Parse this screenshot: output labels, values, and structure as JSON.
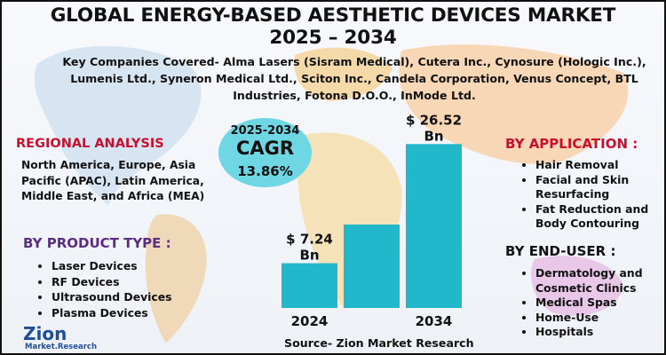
{
  "header": {
    "title_line1": "GLOBAL ENERGY-BASED AESTHETIC DEVICES MARKET",
    "title_line2": "2025 – 2034",
    "companies": "Key Companies Covered- Alma Lasers (Sisram Medical), Cutera Inc., Cynosure (Hologic Inc.), Lumenis Ltd., Syneron Medical Ltd., Sciton Inc., Candela Corporation, Venus Concept, BTL Industries, Fotona D.O.O., InMode Ltd."
  },
  "regional": {
    "heading": "REGIONAL ANALYSIS",
    "text": "North America, Europe, Asia Pacific (APAC), Latin America, Middle East, and Africa (MEA)"
  },
  "product_type": {
    "heading": "BY  PRODUCT TYPE :",
    "items": [
      "Laser Devices",
      "RF Devices",
      "Ultrasound Devices",
      "Plasma Devices"
    ]
  },
  "application": {
    "heading": "BY APPLICATION :",
    "items": [
      "Hair Removal",
      "Facial and Skin Resurfacing",
      "Fat Reduction and Body Contouring"
    ]
  },
  "end_user": {
    "heading": "BY END-USER :",
    "items": [
      "Dermatology and Cosmetic Clinics",
      "Medical Spas",
      "Home-Use",
      "Hospitals"
    ]
  },
  "cagr": {
    "years": "2025-2034",
    "label": "CAGR",
    "value": "13.86%"
  },
  "source": "Source- Zion Market Research",
  "logo": {
    "name": "Zion",
    "sub": "Market.Research"
  },
  "colors": {
    "bar": "#22b8cc",
    "regional_heading": "#c8102e",
    "product_heading": "#5a2d82",
    "cagr_bubble": "#6fd6e4"
  },
  "chart_data": {
    "type": "bar",
    "categories": [
      "2024",
      "",
      "2034"
    ],
    "values": [
      7.24,
      13.5,
      26.52
    ],
    "data_labels": [
      "$ 7.24\nBn",
      "",
      "$ 26.52\nBn"
    ],
    "ylim": [
      0,
      28
    ],
    "grid": false,
    "title": "",
    "xlabel": "",
    "ylabel": ""
  }
}
